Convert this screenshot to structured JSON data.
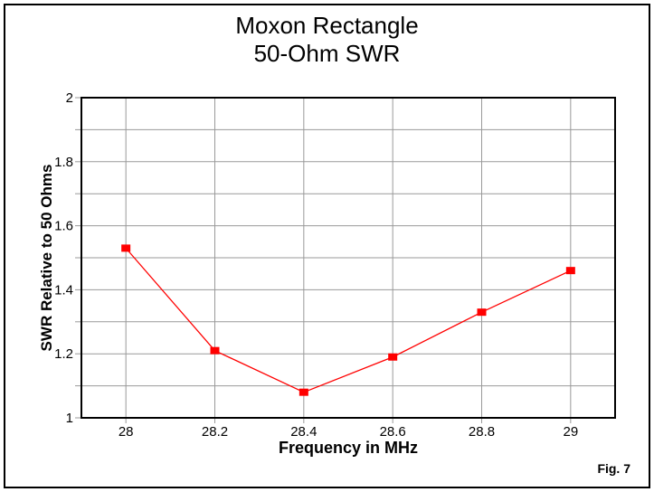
{
  "title": {
    "line1": "Moxon Rectangle",
    "line2": "50-Ohm SWR"
  },
  "figure_label": "Fig. 7",
  "colors": {
    "background": "#ffffff",
    "border": "#000000",
    "series": "#ff0000",
    "grid": "#999999",
    "axis_frame": "#000000",
    "text": "#000000"
  },
  "chart_data": {
    "type": "line",
    "title": "Moxon Rectangle 50-Ohm SWR",
    "xlabel": "Frequency in MHz",
    "ylabel": "SWR Relative to 50 Ohms",
    "x": [
      28.0,
      28.2,
      28.4,
      28.6,
      28.8,
      29.0
    ],
    "y": [
      1.53,
      1.21,
      1.08,
      1.19,
      1.33,
      1.46
    ],
    "xlim": [
      27.9,
      29.1
    ],
    "ylim": [
      1,
      2
    ],
    "x_ticks": [
      28,
      28.2,
      28.4,
      28.6,
      28.8,
      29
    ],
    "x_tick_labels": [
      "28",
      "28.2",
      "28.4",
      "28.6",
      "28.8",
      "29"
    ],
    "y_ticks": [
      1,
      1.2,
      1.4,
      1.6,
      1.8,
      2
    ],
    "y_tick_labels": [
      "1",
      "1.2",
      "1.4",
      "1.6",
      "1.8",
      "2"
    ],
    "y_minor_step": 0.1,
    "grid": true,
    "legend": "none",
    "line_color": "#ff0000",
    "marker": "filled-square",
    "marker_color": "#ff0000",
    "grid_color": "#999999",
    "axis_color": "#000000"
  }
}
